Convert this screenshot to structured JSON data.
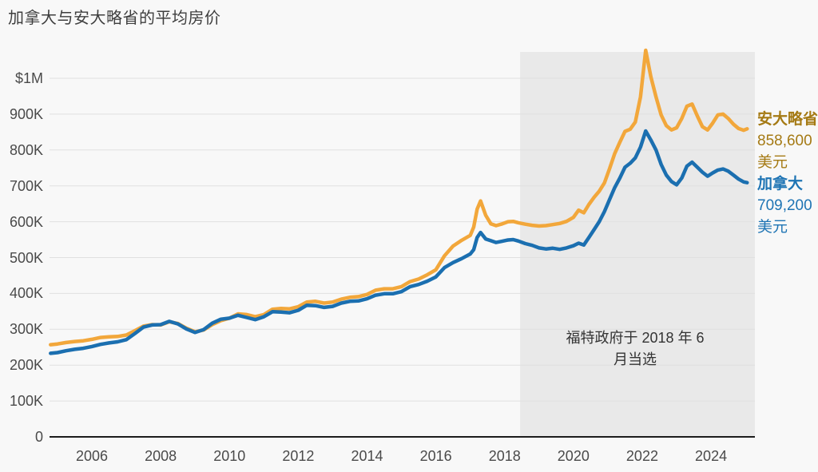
{
  "title": "加拿大与安大略省的平均房价",
  "chart_data": {
    "type": "line",
    "title": "加拿大与安大略省的平均房价",
    "unit": "美元 (千)",
    "x_axis": {
      "ticks": [
        2006,
        2008,
        2010,
        2012,
        2014,
        2016,
        2018,
        2020,
        2022,
        2024
      ],
      "range": [
        2004.8,
        2025.3
      ]
    },
    "y_axis": {
      "labels": [
        "$1M",
        "900K",
        "800K",
        "700K",
        "600K",
        "500K",
        "400K",
        "300K",
        "200K",
        "100K",
        "0"
      ],
      "values": [
        1000,
        900,
        800,
        700,
        600,
        500,
        400,
        300,
        200,
        100,
        0
      ],
      "range": [
        0,
        1000
      ],
      "grid": true
    },
    "x": [
      2004.8,
      2005.0,
      2005.25,
      2005.5,
      2005.75,
      2006.0,
      2006.25,
      2006.5,
      2006.75,
      2007.0,
      2007.25,
      2007.5,
      2007.75,
      2008.0,
      2008.25,
      2008.5,
      2008.75,
      2009.0,
      2009.25,
      2009.5,
      2009.75,
      2010.0,
      2010.25,
      2010.5,
      2010.75,
      2011.0,
      2011.25,
      2011.5,
      2011.75,
      2012.0,
      2012.25,
      2012.5,
      2012.75,
      2013.0,
      2013.25,
      2013.5,
      2013.75,
      2014.0,
      2014.25,
      2014.5,
      2014.75,
      2015.0,
      2015.25,
      2015.5,
      2015.75,
      2016.0,
      2016.25,
      2016.5,
      2016.75,
      2017.0,
      2017.1,
      2017.2,
      2017.3,
      2017.45,
      2017.6,
      2017.75,
      2017.9,
      2018.1,
      2018.25,
      2018.4,
      2018.6,
      2018.8,
      2019.0,
      2019.2,
      2019.4,
      2019.6,
      2019.8,
      2020.0,
      2020.15,
      2020.3,
      2020.45,
      2020.6,
      2020.75,
      2020.9,
      2021.05,
      2021.2,
      2021.35,
      2021.5,
      2021.65,
      2021.8,
      2021.95,
      2022.1,
      2022.25,
      2022.4,
      2022.55,
      2022.7,
      2022.85,
      2023.0,
      2023.15,
      2023.3,
      2023.45,
      2023.6,
      2023.75,
      2023.9,
      2024.05,
      2024.2,
      2024.35,
      2024.5,
      2024.65,
      2024.8,
      2024.95,
      2025.05
    ],
    "series": [
      {
        "id": "ontario-line",
        "name": "安大略省",
        "color": "#f2a73b",
        "label_color": "#a57a14",
        "final_value_label": "858,600",
        "currency_label": "美元",
        "values": [
          257,
          259,
          263,
          266,
          268,
          272,
          277,
          279,
          280,
          284,
          296,
          309,
          313,
          312,
          321,
          316,
          303,
          293,
          298,
          313,
          324,
          331,
          343,
          341,
          335,
          341,
          356,
          358,
          357,
          363,
          376,
          378,
          373,
          376,
          384,
          389,
          391,
          397,
          409,
          413,
          413,
          419,
          433,
          440,
          452,
          466,
          505,
          532,
          548,
          562,
          585,
          635,
          658,
          618,
          594,
          589,
          593,
          600,
          601,
          597,
          593,
          590,
          588,
          589,
          592,
          595,
          601,
          612,
          632,
          625,
          648,
          668,
          685,
          708,
          748,
          790,
          822,
          852,
          858,
          878,
          948,
          1078,
          1005,
          948,
          898,
          868,
          856,
          862,
          888,
          922,
          928,
          895,
          865,
          856,
          875,
          898,
          900,
          888,
          872,
          860,
          855,
          859
        ]
      },
      {
        "id": "canada-line",
        "name": "加拿大",
        "color": "#1b6fb0",
        "label_color": "#1e74b4",
        "final_value_label": "709,200",
        "currency_label": "美元",
        "values": [
          233,
          235,
          240,
          244,
          247,
          252,
          258,
          262,
          265,
          271,
          288,
          306,
          312,
          313,
          322,
          315,
          301,
          291,
          299,
          317,
          328,
          331,
          339,
          333,
          327,
          335,
          349,
          348,
          346,
          353,
          367,
          366,
          361,
          364,
          373,
          378,
          379,
          385,
          395,
          399,
          399,
          405,
          419,
          425,
          434,
          446,
          472,
          486,
          497,
          510,
          522,
          556,
          570,
          552,
          547,
          542,
          545,
          549,
          550,
          546,
          539,
          534,
          527,
          524,
          526,
          523,
          527,
          533,
          540,
          535,
          556,
          578,
          600,
          628,
          662,
          695,
          722,
          752,
          763,
          778,
          808,
          853,
          828,
          800,
          760,
          730,
          712,
          703,
          722,
          755,
          766,
          752,
          738,
          727,
          736,
          744,
          747,
          741,
          730,
          719,
          711,
          709
        ]
      }
    ],
    "shaded_region": {
      "start_year": 2018.45,
      "label_lines": [
        "福特政府于 2018 年 6",
        "月当选"
      ],
      "fill": "#e9e9e9"
    },
    "legend_position": "right",
    "colors": {
      "background": "#f8f8f8",
      "gridline": "#e0e0e0",
      "axis": "#1c1c1c",
      "text": "#4a4a4a"
    }
  }
}
